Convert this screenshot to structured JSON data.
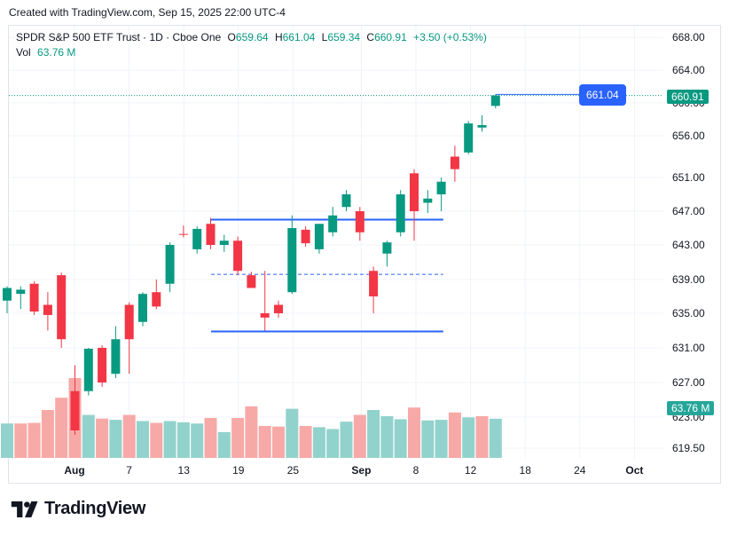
{
  "header": {
    "created_text": "Created with TradingView.com, Sep 15, 2025 22:00 UTC-4"
  },
  "legend": {
    "symbol": "SPDR S&P 500 ETF Trust · 1D · Cboe One",
    "o_label": "O",
    "o_value": "659.64",
    "h_label": "H",
    "h_value": "661.04",
    "l_label": "L",
    "l_value": "659.34",
    "c_label": "C",
    "c_value": "660.91",
    "change": "+3.50 (+0.53%)",
    "vol_label": "Vol",
    "vol_value": "63.76 M"
  },
  "price_tag": "660.91",
  "vol_tag": "63.76 M",
  "hover_tag": "661.04",
  "brand": {
    "name": "TradingView"
  },
  "colors": {
    "up": "#089981",
    "down": "#f23645",
    "vol_up": "#92d2cc",
    "vol_down": "#f7a9a7",
    "drawing": "#2962ff"
  },
  "chart_data": {
    "type": "candlestick",
    "y_ticks": [
      "668.00",
      "664.00",
      "660.00",
      "656.00",
      "651.00",
      "647.00",
      "643.00",
      "639.00",
      "635.00",
      "631.00",
      "627.00",
      "623.00",
      "619.50"
    ],
    "x_ticks": [
      {
        "label": "Aug",
        "day": 0,
        "bold": true
      },
      {
        "label": "7",
        "day": 4
      },
      {
        "label": "13",
        "day": 8
      },
      {
        "label": "19",
        "day": 12
      },
      {
        "label": "25",
        "day": 16
      },
      {
        "label": "Sep",
        "day": 21,
        "bold": true
      },
      {
        "label": "8",
        "day": 25
      },
      {
        "label": "12",
        "day": 29
      },
      {
        "label": "18",
        "day": 33
      },
      {
        "label": "24",
        "day": 37
      },
      {
        "label": "Oct",
        "day": 41,
        "bold": true
      }
    ],
    "candles": [
      {
        "o": 636.5,
        "h": 638.2,
        "l": 635.0,
        "c": 638.0
      },
      {
        "o": 637.3,
        "h": 638.2,
        "l": 635.5,
        "c": 637.8
      },
      {
        "o": 638.5,
        "h": 638.8,
        "l": 634.8,
        "c": 635.2
      },
      {
        "o": 636.0,
        "h": 637.5,
        "l": 633.0,
        "c": 634.8
      },
      {
        "o": 639.5,
        "h": 639.8,
        "l": 631.0,
        "c": 632.0
      },
      {
        "o": 626.0,
        "h": 629.0,
        "l": 621.0,
        "c": 621.5
      },
      {
        "o": 626.0,
        "h": 631.0,
        "l": 625.5,
        "c": 630.9
      },
      {
        "o": 631.0,
        "h": 631.3,
        "l": 626.5,
        "c": 627.0
      },
      {
        "o": 628.0,
        "h": 633.5,
        "l": 627.5,
        "c": 632.0
      },
      {
        "o": 636.0,
        "h": 636.3,
        "l": 628.0,
        "c": 632.0
      },
      {
        "o": 634.0,
        "h": 637.5,
        "l": 633.5,
        "c": 637.3
      },
      {
        "o": 637.5,
        "h": 639.0,
        "l": 635.5,
        "c": 635.8
      },
      {
        "o": 638.5,
        "h": 643.3,
        "l": 637.5,
        "c": 643.0
      },
      {
        "o": 644.3,
        "h": 645.3,
        "l": 643.9,
        "c": 644.2
      },
      {
        "o": 642.5,
        "h": 645.2,
        "l": 642.0,
        "c": 644.9
      },
      {
        "o": 645.5,
        "h": 646.2,
        "l": 642.5,
        "c": 643.0
      },
      {
        "o": 643.0,
        "h": 644.2,
        "l": 642.2,
        "c": 643.5
      },
      {
        "o": 643.5,
        "h": 644.0,
        "l": 639.5,
        "c": 640.0
      },
      {
        "o": 639.5,
        "h": 639.9,
        "l": 638.0,
        "c": 638.0
      },
      {
        "o": 635.0,
        "h": 640.0,
        "l": 633.0,
        "c": 634.5
      },
      {
        "o": 636.0,
        "h": 636.5,
        "l": 634.5,
        "c": 635.0
      },
      {
        "o": 637.5,
        "h": 646.5,
        "l": 637.3,
        "c": 645.0
      },
      {
        "o": 644.8,
        "h": 645.2,
        "l": 642.8,
        "c": 643.2
      },
      {
        "o": 642.5,
        "h": 645.5,
        "l": 642.0,
        "c": 645.5
      },
      {
        "o": 644.5,
        "h": 647.5,
        "l": 644.0,
        "c": 646.5
      },
      {
        "o": 647.5,
        "h": 649.5,
        "l": 647.0,
        "c": 649.0
      },
      {
        "o": 647.0,
        "h": 647.5,
        "l": 643.5,
        "c": 644.5
      },
      {
        "o": 640.0,
        "h": 640.5,
        "l": 635.0,
        "c": 637.0
      },
      {
        "o": 642.0,
        "h": 643.5,
        "l": 640.5,
        "c": 643.3
      },
      {
        "o": 644.5,
        "h": 649.5,
        "l": 644.0,
        "c": 649.0
      },
      {
        "o": 651.5,
        "h": 652.0,
        "l": 643.5,
        "c": 647.0
      },
      {
        "o": 648.0,
        "h": 649.5,
        "l": 646.8,
        "c": 648.5
      },
      {
        "o": 649.0,
        "h": 651.0,
        "l": 647.0,
        "c": 650.5
      },
      {
        "o": 653.5,
        "h": 654.8,
        "l": 650.5,
        "c": 652.0
      },
      {
        "o": 654.0,
        "h": 657.8,
        "l": 653.8,
        "c": 657.5
      },
      {
        "o": 657.0,
        "h": 658.5,
        "l": 656.5,
        "c": 657.3
      },
      {
        "o": 659.64,
        "h": 661.04,
        "l": 659.34,
        "c": 660.91
      }
    ],
    "volume": [
      {
        "v": 56,
        "dir": "up"
      },
      {
        "v": 56,
        "dir": "down"
      },
      {
        "v": 57,
        "dir": "down"
      },
      {
        "v": 78,
        "dir": "down"
      },
      {
        "v": 98,
        "dir": "down"
      },
      {
        "v": 130,
        "dir": "down"
      },
      {
        "v": 70,
        "dir": "up"
      },
      {
        "v": 64,
        "dir": "down"
      },
      {
        "v": 62,
        "dir": "up"
      },
      {
        "v": 70,
        "dir": "down"
      },
      {
        "v": 60,
        "dir": "up"
      },
      {
        "v": 57,
        "dir": "down"
      },
      {
        "v": 60,
        "dir": "up"
      },
      {
        "v": 58,
        "dir": "up"
      },
      {
        "v": 56,
        "dir": "up"
      },
      {
        "v": 65,
        "dir": "down"
      },
      {
        "v": 42,
        "dir": "up"
      },
      {
        "v": 65,
        "dir": "down"
      },
      {
        "v": 84,
        "dir": "down"
      },
      {
        "v": 52,
        "dir": "down"
      },
      {
        "v": 51,
        "dir": "down"
      },
      {
        "v": 80,
        "dir": "up"
      },
      {
        "v": 52,
        "dir": "down"
      },
      {
        "v": 50,
        "dir": "up"
      },
      {
        "v": 47,
        "dir": "up"
      },
      {
        "v": 59,
        "dir": "up"
      },
      {
        "v": 70,
        "dir": "down"
      },
      {
        "v": 78,
        "dir": "up"
      },
      {
        "v": 68,
        "dir": "up"
      },
      {
        "v": 63,
        "dir": "up"
      },
      {
        "v": 82,
        "dir": "down"
      },
      {
        "v": 61,
        "dir": "up"
      },
      {
        "v": 62,
        "dir": "up"
      },
      {
        "v": 74,
        "dir": "down"
      },
      {
        "v": 66,
        "dir": "up"
      },
      {
        "v": 68,
        "dir": "down"
      },
      {
        "v": 63.76,
        "dir": "up"
      }
    ],
    "drawings": [
      {
        "type": "hline",
        "price": 646.0,
        "from_day": 10,
        "to_day": 27,
        "style": "solid"
      },
      {
        "type": "hline",
        "price": 639.6,
        "from_day": 10,
        "to_day": 27,
        "style": "dashed"
      },
      {
        "type": "hline",
        "price": 632.9,
        "from_day": 10,
        "to_day": 27,
        "style": "solid"
      }
    ],
    "last_price": 660.91,
    "hover_price": 661.04,
    "vol_max": 130
  }
}
